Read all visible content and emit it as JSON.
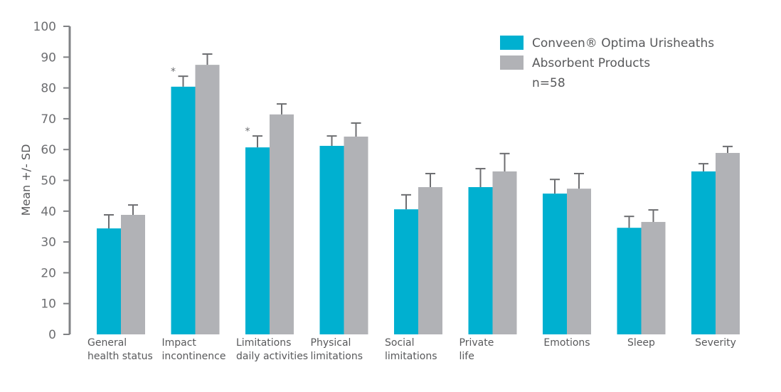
{
  "chart_data": {
    "type": "bar",
    "title": "",
    "xlabel": "",
    "ylabel": "Mean +/- SD",
    "ylim": [
      0,
      100
    ],
    "yticks": [
      0,
      10,
      20,
      30,
      40,
      50,
      60,
      70,
      80,
      90,
      100
    ],
    "grid": false,
    "legend_position": "top-right",
    "categories": [
      [
        "General",
        "health status"
      ],
      [
        "Impact",
        "incontinence"
      ],
      [
        "Limitations",
        "daily activities"
      ],
      [
        "Physical",
        "limitations"
      ],
      [
        "Social",
        "limitations"
      ],
      [
        "Private",
        "life"
      ],
      [
        "Emotions"
      ],
      [
        "Sleep"
      ],
      [
        "Severity"
      ]
    ],
    "series": [
      {
        "name": "Conveen® Optima Urisheaths",
        "color": "#00b0d0",
        "values": [
          34.4,
          80.4,
          60.7,
          61.2,
          40.6,
          47.8,
          45.7,
          34.6,
          52.9
        ],
        "sd": [
          4.4,
          3.4,
          3.7,
          3.2,
          4.7,
          6.0,
          4.6,
          3.7,
          2.5
        ]
      },
      {
        "name": "Absorbent Products",
        "color": "#b1b2b6",
        "values": [
          38.8,
          87.5,
          71.4,
          64.2,
          47.8,
          52.9,
          47.3,
          36.5,
          58.9
        ],
        "sd": [
          3.2,
          3.5,
          3.4,
          4.4,
          4.4,
          5.8,
          4.9,
          3.9,
          2.1
        ]
      }
    ],
    "significance_markers": [
      {
        "category_index": 1,
        "series_index": 0,
        "symbol": "*"
      },
      {
        "category_index": 2,
        "series_index": 0,
        "symbol": "*"
      }
    ],
    "legend_note": "n=58"
  }
}
